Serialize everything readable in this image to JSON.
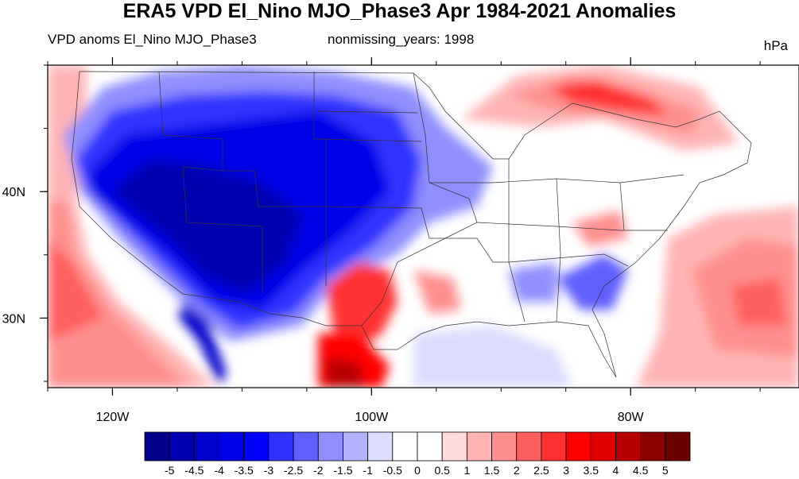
{
  "title": "ERA5 VPD El_Nino MJO_Phase3 Apr 1984-2021 Anomalies",
  "subtitle_left": "VPD anoms El_Nino MJO_Phase3",
  "subtitle_center": "nonmissing_years: 1998",
  "units": "hPa",
  "map": {
    "lon_range": [
      -125,
      -67
    ],
    "lat_range": [
      24.5,
      50
    ],
    "lat_ticks": [
      {
        "value": 40,
        "label": "40N"
      },
      {
        "value": 30,
        "label": "30N"
      }
    ],
    "lon_ticks": [
      {
        "value": -120,
        "label": "120W"
      },
      {
        "value": -100,
        "label": "100W"
      },
      {
        "value": -80,
        "label": "80W"
      }
    ],
    "minor_lon_step": 5,
    "minor_lat_step": 5
  },
  "colorbar": {
    "labels": [
      "-5",
      "-4.5",
      "-4",
      "-3.5",
      "-3",
      "-2.5",
      "-2",
      "-1.5",
      "-1",
      "-0.5",
      "0",
      "0.5",
      "1",
      "1.5",
      "2",
      "2.5",
      "3",
      "3.5",
      "4",
      "4.5",
      "5"
    ],
    "colors": [
      "#00008b",
      "#0000b0",
      "#0000cd",
      "#0000e6",
      "#0000ff",
      "#3030ff",
      "#5f5fff",
      "#8f8fff",
      "#b3b3ff",
      "#dcdcff",
      "#ffffff",
      "#ffffff",
      "#ffdcdc",
      "#ffb3b3",
      "#ff8f8f",
      "#ff5f5f",
      "#ff3030",
      "#ff0000",
      "#e00000",
      "#b80000",
      "#8b0000",
      "#6b0000"
    ]
  }
}
